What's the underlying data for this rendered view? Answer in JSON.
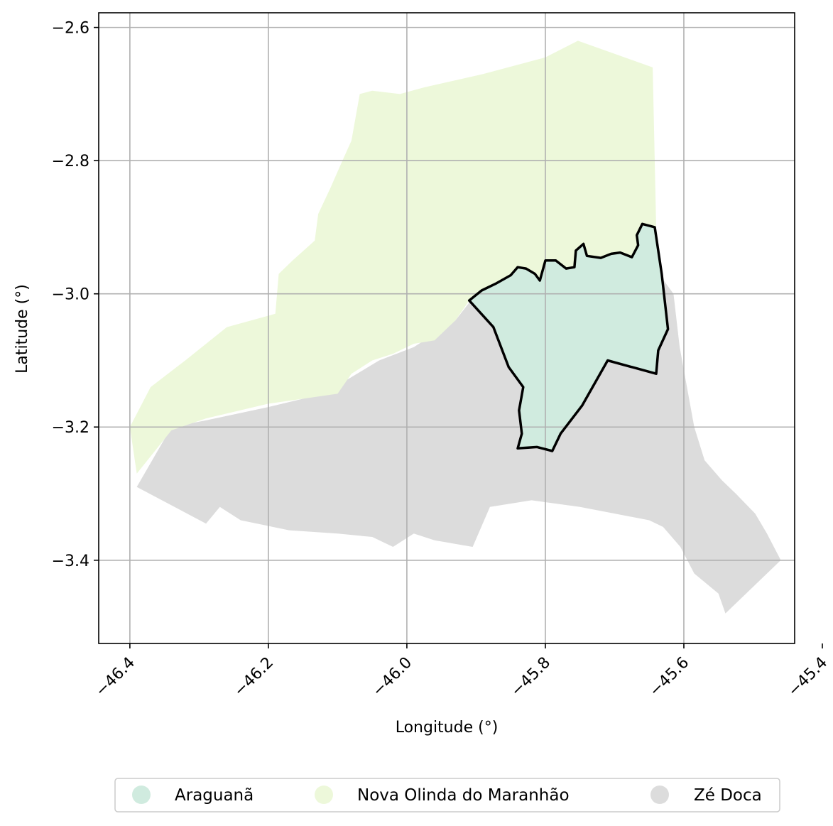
{
  "chart_data": {
    "type": "map",
    "title": "",
    "xlabel": "Longitude (°)",
    "ylabel": "Latitude (°)",
    "xlim": [
      -46.445,
      -45.44
    ],
    "ylim": [
      -3.525,
      -2.578
    ],
    "xticks": [
      -46.4,
      -46.2,
      -46.0,
      -45.8,
      -45.6,
      -45.4
    ],
    "yticks": [
      -2.6,
      -2.8,
      -3.0,
      -3.2,
      -3.4
    ],
    "grid": true,
    "legend_position": "bottom",
    "regions": [
      {
        "name": "Araguanã",
        "color": "#d0ebdf",
        "highlighted": true,
        "outline_color": "#000000",
        "polygon": [
          [
            -45.91,
            -3.01
          ],
          [
            -45.892,
            -2.995
          ],
          [
            -45.872,
            -2.985
          ],
          [
            -45.85,
            -2.972
          ],
          [
            -45.84,
            -2.96
          ],
          [
            -45.828,
            -2.962
          ],
          [
            -45.815,
            -2.97
          ],
          [
            -45.808,
            -2.98
          ],
          [
            -45.8,
            -2.95
          ],
          [
            -45.785,
            -2.95
          ],
          [
            -45.77,
            -2.962
          ],
          [
            -45.758,
            -2.96
          ],
          [
            -45.756,
            -2.935
          ],
          [
            -45.745,
            -2.925
          ],
          [
            -45.74,
            -2.943
          ],
          [
            -45.72,
            -2.946
          ],
          [
            -45.705,
            -2.94
          ],
          [
            -45.692,
            -2.938
          ],
          [
            -45.675,
            -2.945
          ],
          [
            -45.666,
            -2.927
          ],
          [
            -45.668,
            -2.912
          ],
          [
            -45.66,
            -2.895
          ],
          [
            -45.642,
            -2.9
          ],
          [
            -45.632,
            -2.97
          ],
          [
            -45.623,
            -3.053
          ],
          [
            -45.637,
            -3.085
          ],
          [
            -45.64,
            -3.12
          ],
          [
            -45.71,
            -3.1
          ],
          [
            -45.747,
            -3.168
          ],
          [
            -45.778,
            -3.21
          ],
          [
            -45.79,
            -3.236
          ],
          [
            -45.812,
            -3.23
          ],
          [
            -45.84,
            -3.232
          ],
          [
            -45.834,
            -3.21
          ],
          [
            -45.838,
            -3.175
          ],
          [
            -45.832,
            -3.14
          ],
          [
            -45.853,
            -3.11
          ],
          [
            -45.875,
            -3.05
          ]
        ]
      },
      {
        "name": "Nova Olinda do Maranhão",
        "color": "#edf8da",
        "highlighted": false,
        "polygon": [
          [
            -46.02,
            -3.09
          ],
          [
            -46.05,
            -3.1
          ],
          [
            -46.08,
            -3.12
          ],
          [
            -46.1,
            -3.15
          ],
          [
            -46.2,
            -3.165
          ],
          [
            -46.29,
            -3.187
          ],
          [
            -46.34,
            -3.205
          ],
          [
            -46.39,
            -3.27
          ],
          [
            -46.4,
            -3.2
          ],
          [
            -46.37,
            -3.14
          ],
          [
            -46.32,
            -3.1
          ],
          [
            -46.26,
            -3.05
          ],
          [
            -46.19,
            -3.03
          ],
          [
            -46.185,
            -2.97
          ],
          [
            -46.165,
            -2.95
          ],
          [
            -46.133,
            -2.92
          ],
          [
            -46.128,
            -2.88
          ],
          [
            -46.11,
            -2.84
          ],
          [
            -46.093,
            -2.8
          ],
          [
            -46.08,
            -2.77
          ],
          [
            -46.068,
            -2.7
          ],
          [
            -46.05,
            -2.695
          ],
          [
            -46.01,
            -2.7
          ],
          [
            -45.975,
            -2.69
          ],
          [
            -45.89,
            -2.67
          ],
          [
            -45.8,
            -2.645
          ],
          [
            -45.753,
            -2.62
          ],
          [
            -45.645,
            -2.66
          ],
          [
            -45.64,
            -2.9
          ],
          [
            -45.662,
            -2.9
          ],
          [
            -45.656,
            -2.93
          ],
          [
            -45.7,
            -2.96
          ],
          [
            -45.76,
            -2.965
          ],
          [
            -45.8,
            -2.99
          ],
          [
            -45.85,
            -2.975
          ],
          [
            -45.91,
            -3.01
          ],
          [
            -45.93,
            -3.04
          ],
          [
            -45.96,
            -3.07
          ],
          [
            -45.99,
            -3.075
          ]
        ]
      },
      {
        "name": "Zé Doca",
        "color": "#dcdcdc",
        "highlighted": false,
        "polygon": [
          [
            -46.39,
            -3.29
          ],
          [
            -46.34,
            -3.2
          ],
          [
            -46.29,
            -3.19
          ],
          [
            -46.2,
            -3.17
          ],
          [
            -46.12,
            -3.15
          ],
          [
            -46.04,
            -3.1
          ],
          [
            -45.99,
            -3.08
          ],
          [
            -45.93,
            -3.04
          ],
          [
            -45.9,
            -3.0
          ],
          [
            -45.85,
            -3.0
          ],
          [
            -45.8,
            -2.99
          ],
          [
            -45.76,
            -2.97
          ],
          [
            -45.7,
            -2.96
          ],
          [
            -45.65,
            -2.95
          ],
          [
            -45.615,
            -3.0
          ],
          [
            -45.606,
            -3.08
          ],
          [
            -45.585,
            -3.2
          ],
          [
            -45.57,
            -3.25
          ],
          [
            -45.545,
            -3.28
          ],
          [
            -45.525,
            -3.3
          ],
          [
            -45.497,
            -3.33
          ],
          [
            -45.48,
            -3.36
          ],
          [
            -45.46,
            -3.4
          ],
          [
            -45.5,
            -3.44
          ],
          [
            -45.54,
            -3.48
          ],
          [
            -45.55,
            -3.45
          ],
          [
            -45.585,
            -3.42
          ],
          [
            -45.605,
            -3.38
          ],
          [
            -45.63,
            -3.35
          ],
          [
            -45.65,
            -3.34
          ],
          [
            -45.7,
            -3.33
          ],
          [
            -45.75,
            -3.32
          ],
          [
            -45.82,
            -3.31
          ],
          [
            -45.88,
            -3.32
          ],
          [
            -45.905,
            -3.38
          ],
          [
            -45.96,
            -3.37
          ],
          [
            -45.99,
            -3.36
          ],
          [
            -46.02,
            -3.38
          ],
          [
            -46.05,
            -3.365
          ],
          [
            -46.1,
            -3.36
          ],
          [
            -46.17,
            -3.355
          ],
          [
            -46.24,
            -3.34
          ],
          [
            -46.27,
            -3.32
          ],
          [
            -46.29,
            -3.345
          ]
        ]
      }
    ]
  },
  "legend": {
    "items": [
      {
        "label": "Araguanã",
        "color": "#d0ebdf"
      },
      {
        "label": "Nova Olinda do Maranhão",
        "color": "#edf8da"
      },
      {
        "label": "Zé Doca",
        "color": "#dcdcdc"
      }
    ]
  }
}
